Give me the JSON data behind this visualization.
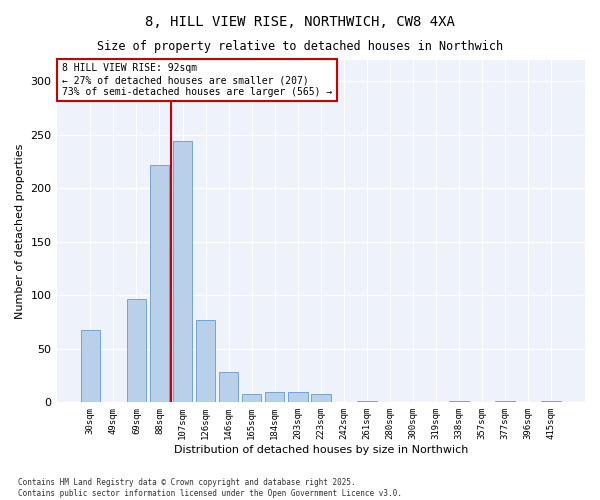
{
  "title_line1": "8, HILL VIEW RISE, NORTHWICH, CW8 4XA",
  "title_line2": "Size of property relative to detached houses in Northwich",
  "xlabel": "Distribution of detached houses by size in Northwich",
  "ylabel": "Number of detached properties",
  "categories": [
    "30sqm",
    "49sqm",
    "69sqm",
    "88sqm",
    "107sqm",
    "126sqm",
    "146sqm",
    "165sqm",
    "184sqm",
    "203sqm",
    "223sqm",
    "242sqm",
    "261sqm",
    "280sqm",
    "300sqm",
    "319sqm",
    "338sqm",
    "357sqm",
    "377sqm",
    "396sqm",
    "415sqm"
  ],
  "values": [
    68,
    0,
    97,
    222,
    244,
    77,
    28,
    8,
    10,
    10,
    8,
    0,
    1,
    0,
    0,
    0,
    1,
    0,
    1,
    0,
    1
  ],
  "bar_color": "#b8d0ea",
  "bar_edge_color": "#6699cc",
  "vline_x_index": 3.5,
  "vline_color": "#cc0000",
  "annotation_line1": "8 HILL VIEW RISE: 92sqm",
  "annotation_line2": "← 27% of detached houses are smaller (207)",
  "annotation_line3": "73% of semi-detached houses are larger (565) →",
  "annotation_box_edge_color": "#cc0000",
  "ylim": [
    0,
    320
  ],
  "yticks": [
    0,
    50,
    100,
    150,
    200,
    250,
    300
  ],
  "plot_bg_color": "#eef2fb",
  "footnote1": "Contains HM Land Registry data © Crown copyright and database right 2025.",
  "footnote2": "Contains public sector information licensed under the Open Government Licence v3.0."
}
